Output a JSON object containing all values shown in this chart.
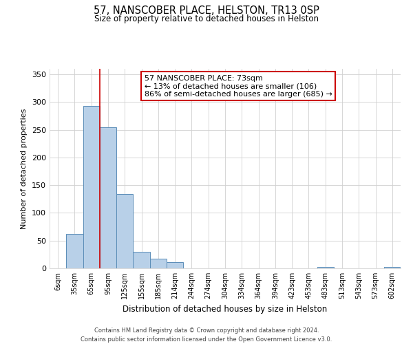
{
  "title": "57, NANSCOBER PLACE, HELSTON, TR13 0SP",
  "subtitle": "Size of property relative to detached houses in Helston",
  "xlabel": "Distribution of detached houses by size in Helston",
  "ylabel": "Number of detached properties",
  "bar_labels": [
    "6sqm",
    "35sqm",
    "65sqm",
    "95sqm",
    "125sqm",
    "155sqm",
    "185sqm",
    "214sqm",
    "244sqm",
    "274sqm",
    "304sqm",
    "334sqm",
    "364sqm",
    "394sqm",
    "423sqm",
    "453sqm",
    "483sqm",
    "513sqm",
    "543sqm",
    "573sqm",
    "602sqm"
  ],
  "bar_values": [
    0,
    62,
    293,
    255,
    134,
    30,
    18,
    11,
    0,
    0,
    0,
    0,
    0,
    0,
    0,
    0,
    3,
    0,
    0,
    0,
    2
  ],
  "bar_color": "#b8d0e8",
  "bar_edge_color": "#5b8db8",
  "ylim": [
    0,
    360
  ],
  "yticks": [
    0,
    50,
    100,
    150,
    200,
    250,
    300,
    350
  ],
  "property_line_x": 2.5,
  "annotation_title": "57 NANSCOBER PLACE: 73sqm",
  "annotation_line1": "← 13% of detached houses are smaller (106)",
  "annotation_line2": "86% of semi-detached houses are larger (685) →",
  "annotation_box_color": "#ffffff",
  "annotation_box_edge": "#cc0000",
  "vline_color": "#cc0000",
  "background_color": "#ffffff",
  "grid_color": "#d0d0d0",
  "footer_line1": "Contains HM Land Registry data © Crown copyright and database right 2024.",
  "footer_line2": "Contains public sector information licensed under the Open Government Licence v3.0."
}
